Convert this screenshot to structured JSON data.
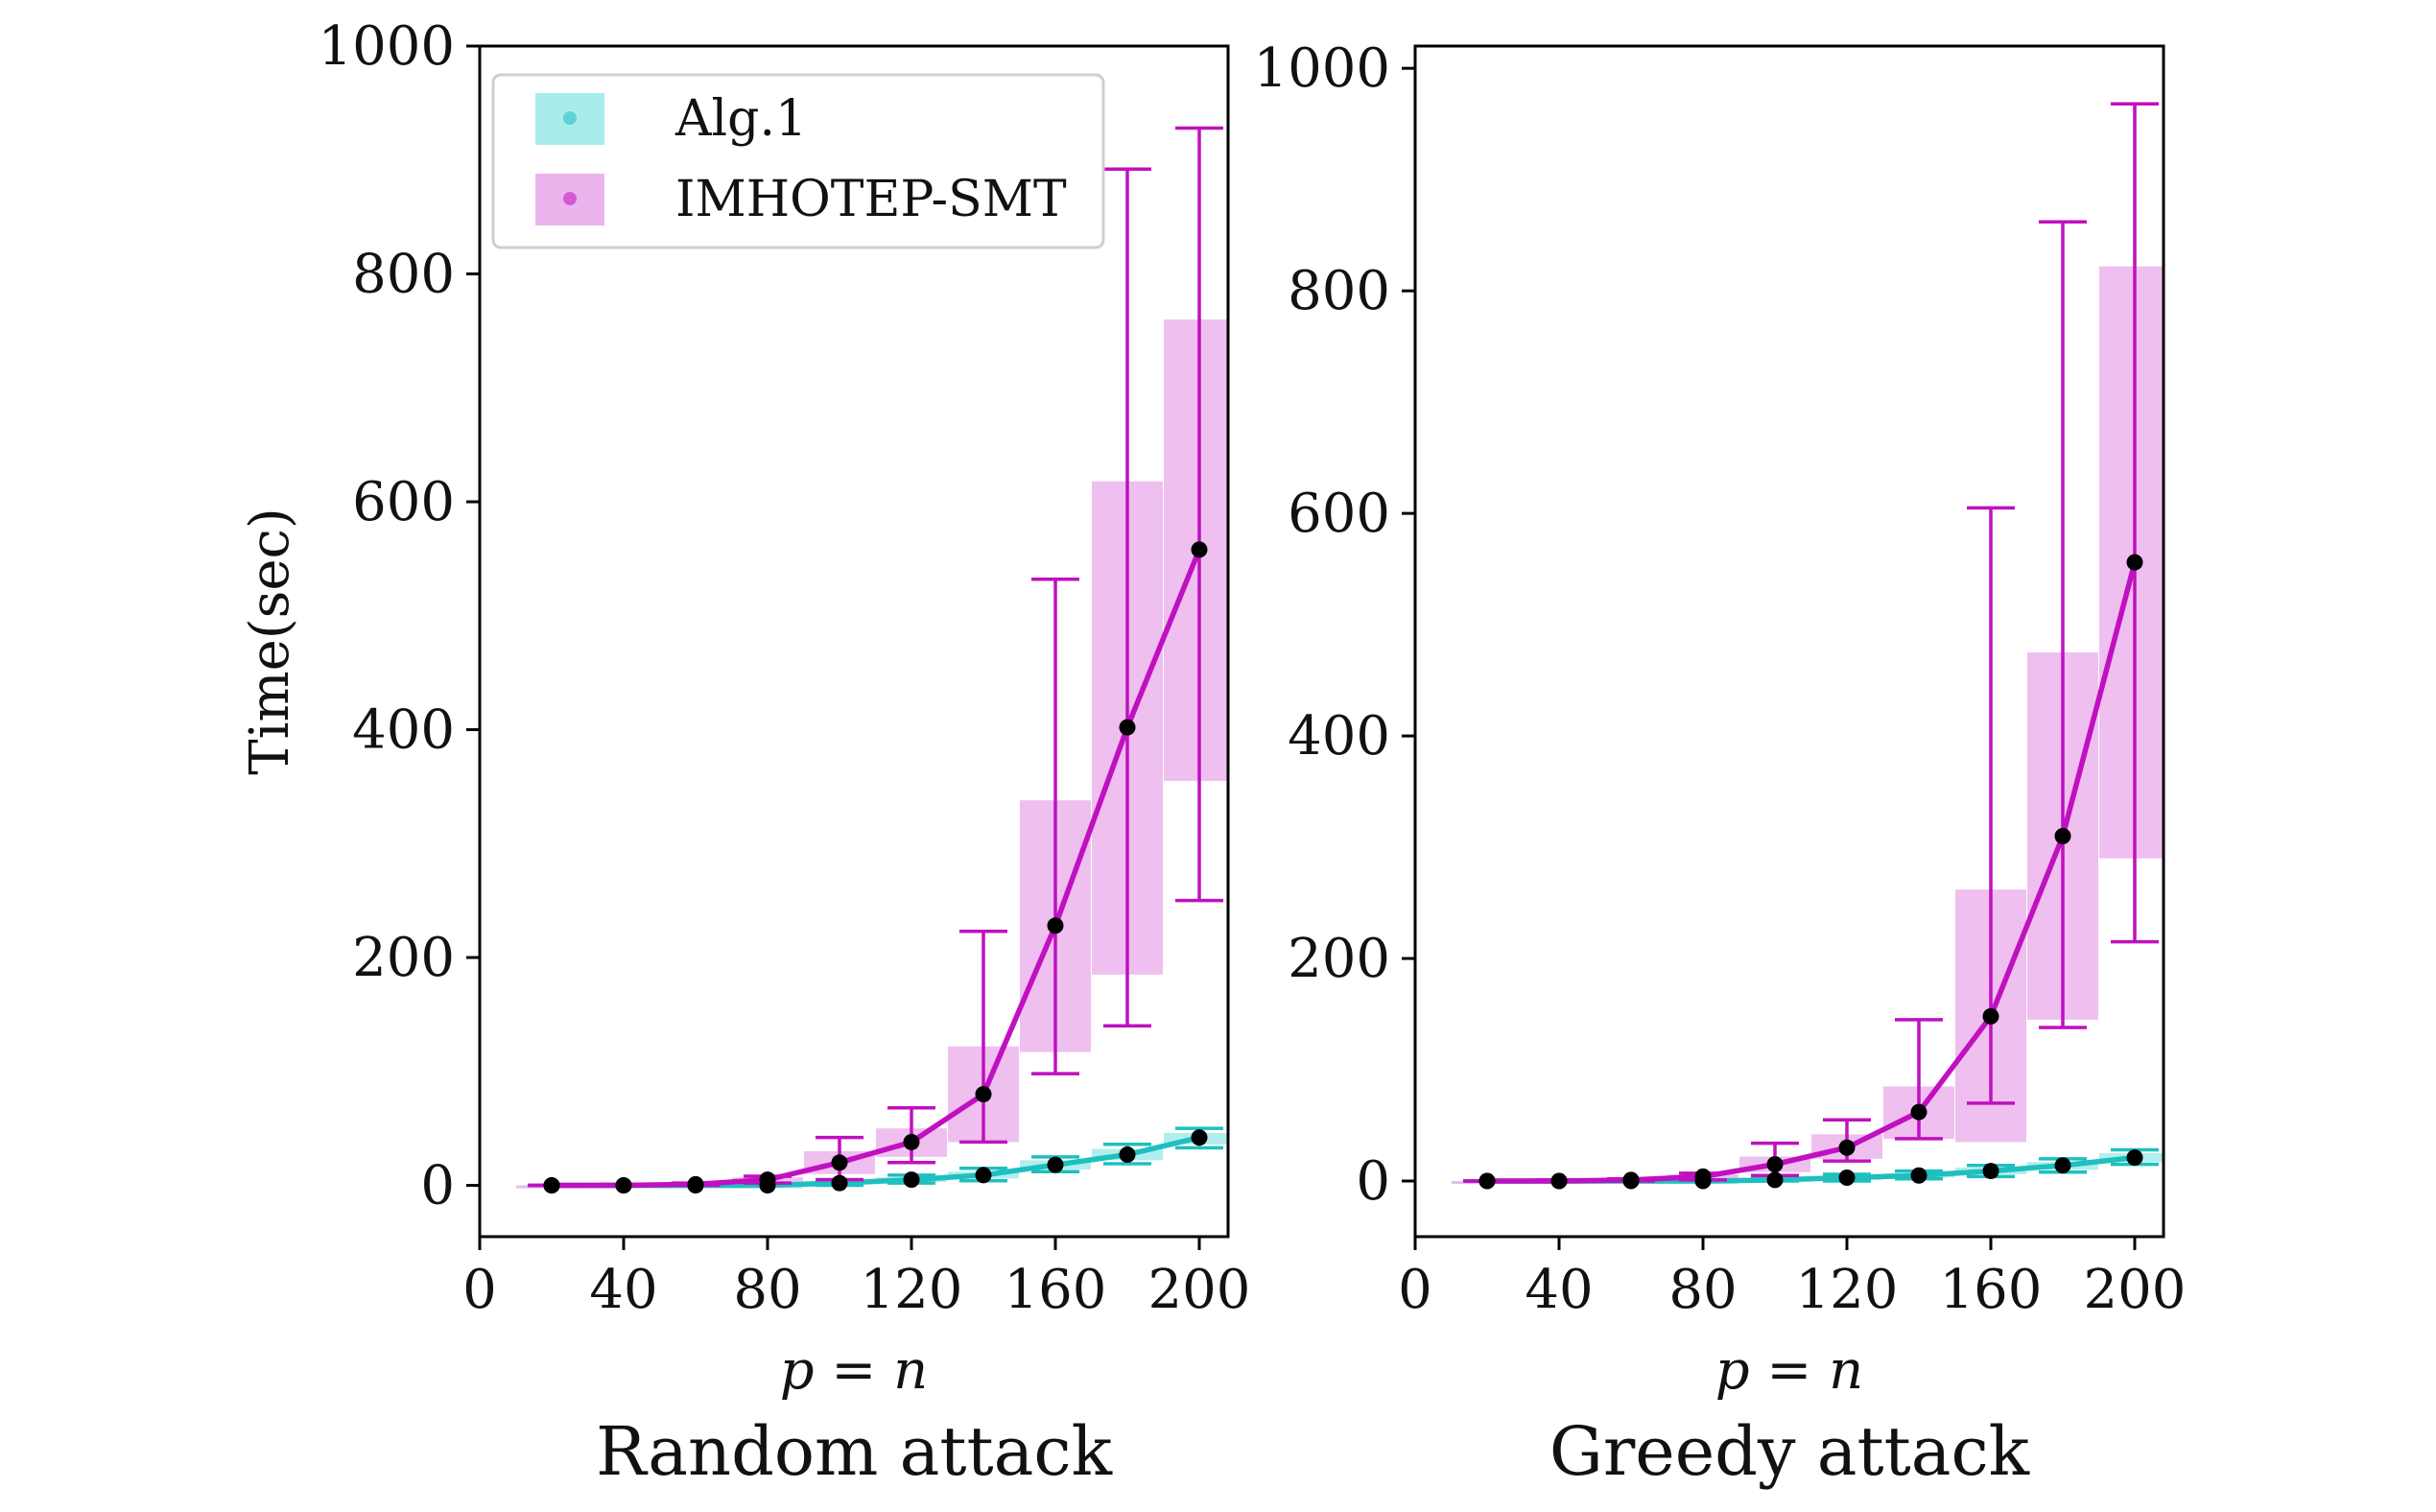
{
  "chart_data": [
    {
      "type": "line",
      "title": "Random attack",
      "xlabel": "p = n",
      "ylabel": "Time(sec)",
      "xlim": [
        0,
        208
      ],
      "ylim": [
        -45,
        1000
      ],
      "xticks": [
        "0",
        "40",
        "80",
        "120",
        "160",
        "200"
      ],
      "xtick_values": [
        0,
        40,
        80,
        120,
        160,
        200
      ],
      "yticks": [
        "0",
        "200",
        "400",
        "600",
        "800",
        "1000"
      ],
      "ytick_values": [
        0,
        200,
        400,
        600,
        800,
        1000
      ],
      "legend": {
        "placement": "top-left",
        "entries": [
          "Alg.1",
          "IMHOTEP-SMT"
        ]
      },
      "series": [
        {
          "name": "Alg.1",
          "color": "#1fbfbf",
          "x": [
            20,
            40,
            60,
            80,
            100,
            120,
            140,
            160,
            180,
            200
          ],
          "values": [
            0,
            0,
            0,
            0,
            2,
            5,
            9,
            18,
            27,
            42
          ],
          "box_low": [
            0,
            0,
            0,
            0,
            1,
            3,
            6,
            14,
            22,
            36
          ],
          "box_high": [
            0,
            0,
            0,
            0,
            4,
            7,
            12,
            22,
            32,
            46
          ],
          "err_low": [
            0,
            0,
            0,
            0,
            0,
            2,
            4,
            12,
            19,
            33
          ],
          "err_high": [
            0,
            0,
            0,
            1,
            5,
            9,
            15,
            25,
            36,
            50
          ]
        },
        {
          "name": "IMHOTEP-SMT",
          "color": "#c010c0",
          "x": [
            20,
            40,
            60,
            80,
            100,
            120,
            140,
            160,
            180,
            200
          ],
          "values": [
            0,
            0,
            1,
            5,
            20,
            38,
            80,
            228,
            402,
            558
          ],
          "box_low": [
            0,
            0,
            0,
            3,
            10,
            25,
            38,
            117,
            185,
            355
          ],
          "box_high": [
            0,
            1,
            2,
            7,
            30,
            50,
            122,
            338,
            618,
            760
          ],
          "err_low": [
            0,
            0,
            0,
            2,
            5,
            20,
            38,
            98,
            140,
            250
          ],
          "err_high": [
            0,
            1,
            2,
            8,
            42,
            68,
            223,
            532,
            892,
            928
          ]
        }
      ]
    },
    {
      "type": "line",
      "title": "Greedy attack",
      "xlabel": "p = n",
      "ylabel": "",
      "xlim": [
        0,
        208
      ],
      "ylim": [
        -50,
        1020
      ],
      "xticks": [
        "0",
        "40",
        "80",
        "120",
        "160",
        "200"
      ],
      "xtick_values": [
        0,
        40,
        80,
        120,
        160,
        200
      ],
      "yticks": [
        "0",
        "200",
        "400",
        "600",
        "800",
        "1000"
      ],
      "ytick_values": [
        0,
        200,
        400,
        600,
        800,
        1000
      ],
      "series": [
        {
          "name": "Alg.1",
          "color": "#1fbfbf",
          "x": [
            20,
            40,
            60,
            80,
            100,
            120,
            140,
            160,
            180,
            200
          ],
          "values": [
            0,
            0,
            0,
            0,
            1,
            3,
            5,
            9,
            14,
            21
          ],
          "box_low": [
            0,
            0,
            0,
            0,
            0,
            1,
            3,
            6,
            10,
            17
          ],
          "box_high": [
            0,
            0,
            0,
            0,
            2,
            4,
            7,
            12,
            17,
            25
          ],
          "err_low": [
            0,
            0,
            0,
            0,
            0,
            0,
            2,
            4,
            8,
            15
          ],
          "err_high": [
            0,
            0,
            0,
            1,
            3,
            6,
            9,
            14,
            20,
            28
          ]
        },
        {
          "name": "IMHOTEP-SMT",
          "color": "#c010c0",
          "x": [
            20,
            40,
            60,
            80,
            100,
            120,
            140,
            160,
            180,
            200
          ],
          "values": [
            0,
            0,
            1,
            4,
            15,
            30,
            62,
            148,
            310,
            556
          ],
          "box_low": [
            0,
            0,
            0,
            2,
            8,
            20,
            38,
            35,
            145,
            290
          ],
          "box_high": [
            0,
            1,
            2,
            6,
            22,
            42,
            85,
            262,
            475,
            822
          ],
          "err_low": [
            0,
            0,
            0,
            1,
            5,
            18,
            38,
            70,
            138,
            215
          ],
          "err_high": [
            0,
            1,
            2,
            7,
            34,
            55,
            145,
            605,
            862,
            968
          ]
        }
      ]
    }
  ]
}
